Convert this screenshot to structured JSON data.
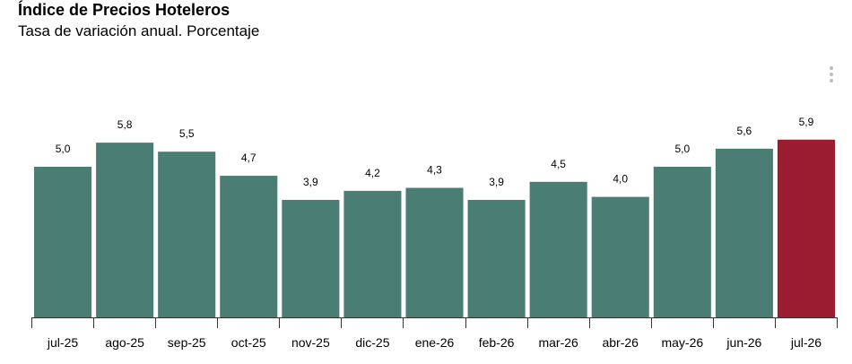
{
  "header": {
    "title": "Índice de Precios Hoteleros",
    "subtitle": "Tasa de variación anual. Porcentaje",
    "menu_icon": "more-vertical-icon"
  },
  "chart_data": {
    "type": "bar",
    "title": "Índice de Precios Hoteleros",
    "subtitle": "Tasa de variación anual. Porcentaje",
    "categories": [
      "jul-25",
      "ago-25",
      "sep-25",
      "oct-25",
      "nov-25",
      "dic-25",
      "ene-26",
      "feb-26",
      "mar-26",
      "abr-26",
      "may-26",
      "jun-26",
      "jul-26"
    ],
    "values": [
      5.0,
      5.8,
      5.5,
      4.7,
      3.9,
      4.2,
      4.3,
      3.9,
      4.5,
      4.0,
      5.0,
      5.6,
      5.9
    ],
    "value_labels": [
      "5,0",
      "5,8",
      "5,5",
      "4,7",
      "3,9",
      "4,2",
      "4,3",
      "3,9",
      "4,5",
      "4,0",
      "5,0",
      "5,6",
      "5,9"
    ],
    "xlabel": "",
    "ylabel": "",
    "ylim": [
      0,
      6.8
    ],
    "grid": false,
    "colors": {
      "default": "#4a7d74",
      "highlight": "#9b1b30"
    },
    "highlight_index": 12
  }
}
